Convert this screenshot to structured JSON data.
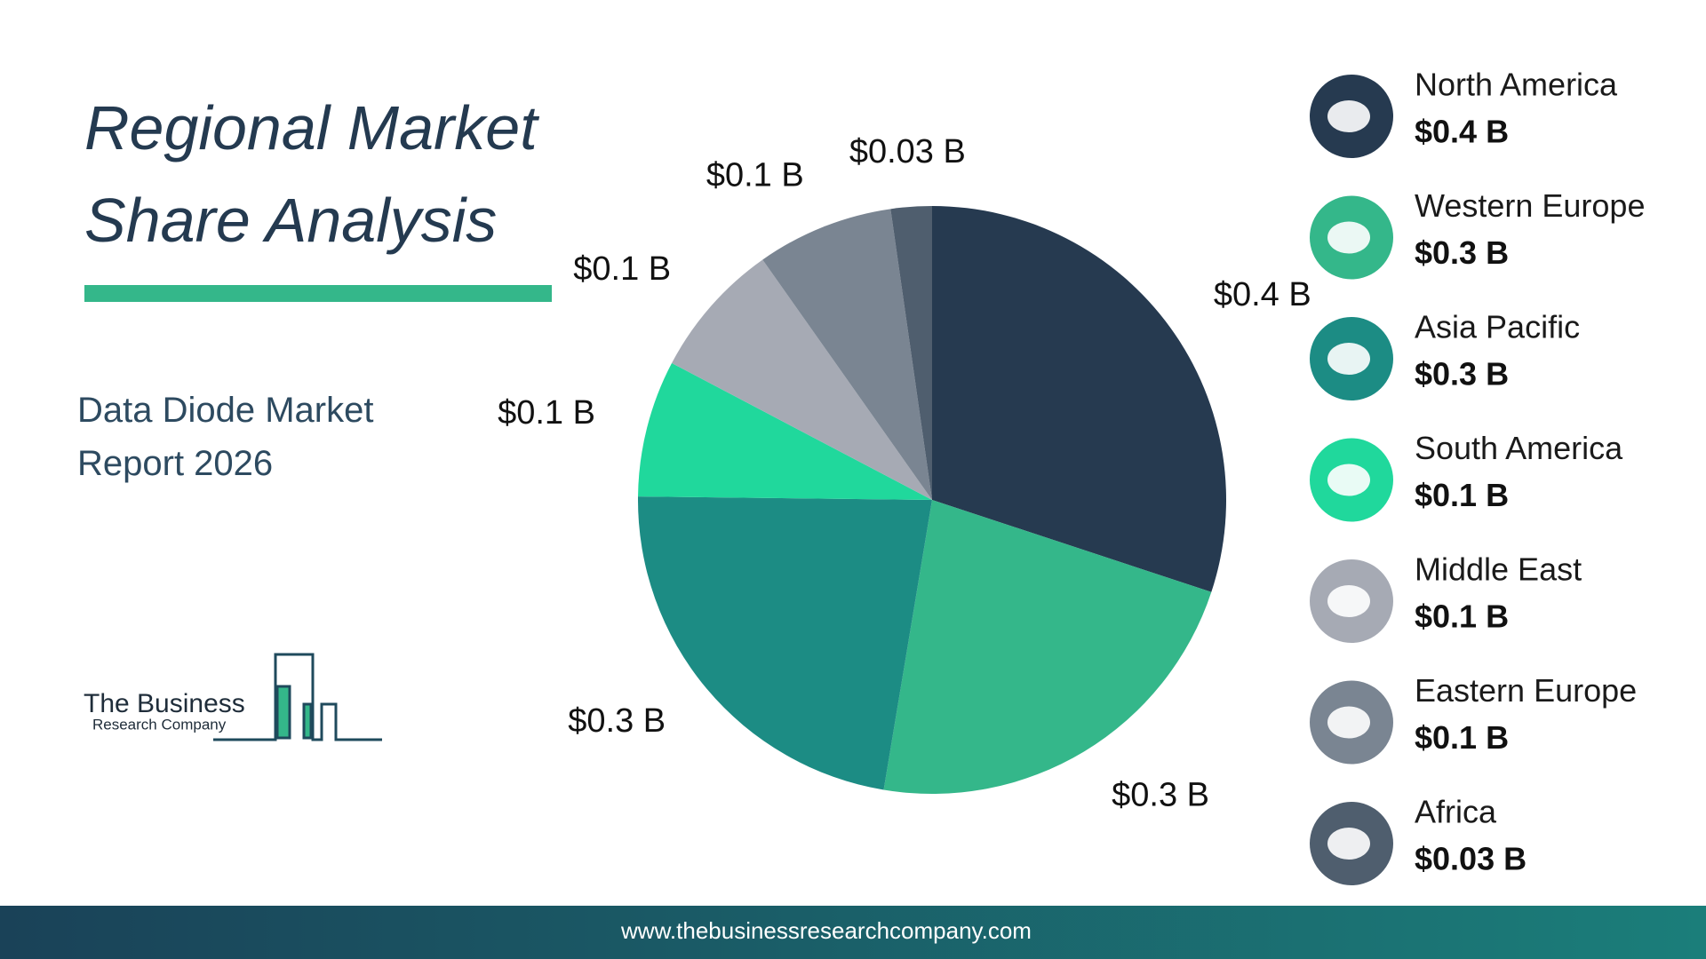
{
  "chart_data": {
    "type": "pie",
    "title": "Regional Market Share Analysis",
    "subtitle": "Data Diode Market Report 2026",
    "categories": [
      "North America",
      "Western Europe",
      "Asia Pacific",
      "South America",
      "Middle East",
      "Eastern Europe",
      "Africa"
    ],
    "values": [
      0.4,
      0.3,
      0.3,
      0.1,
      0.1,
      0.1,
      0.03
    ],
    "value_labels": [
      "$0.4 B",
      "$0.3 B",
      "$0.3 B",
      "$0.1 B",
      "$0.1 B",
      "$0.1 B",
      "$0.03 B"
    ],
    "colors": [
      "#263a50",
      "#34b78a",
      "#1c8c84",
      "#20d89c",
      "#a6aab4",
      "#7a8592",
      "#4f5e6e"
    ]
  },
  "logo": {
    "line1": "The Business",
    "line2": "Research Company"
  },
  "footer": {
    "url": "www.thebusinessresearchcompany.com"
  }
}
